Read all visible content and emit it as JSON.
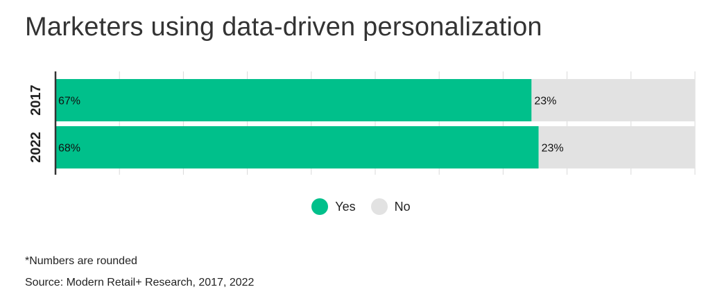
{
  "title": "Marketers using data-driven personalization",
  "note": "*Numbers are rounded",
  "source": "Source: Modern Retail+ Research, 2017, 2022",
  "colors": {
    "yes": "#00c08b",
    "no": "#e2e2e2",
    "grid": "#d9d9d9",
    "axis": "#333333"
  },
  "legend": [
    {
      "label": "Yes",
      "color": "#00c08b"
    },
    {
      "label": "No",
      "color": "#e2e2e2"
    }
  ],
  "chart_data": {
    "type": "bar",
    "orientation": "horizontal",
    "stacked": true,
    "categories": [
      "2017",
      "2022"
    ],
    "series": [
      {
        "name": "Yes",
        "values": [
          67,
          68
        ],
        "labels": [
          "67%",
          "68%"
        ]
      },
      {
        "name": "No",
        "values": [
          23,
          23
        ],
        "labels": [
          "23%",
          "23%"
        ]
      }
    ],
    "xlim": [
      0,
      90
    ],
    "grid": true,
    "legend_position": "bottom"
  }
}
